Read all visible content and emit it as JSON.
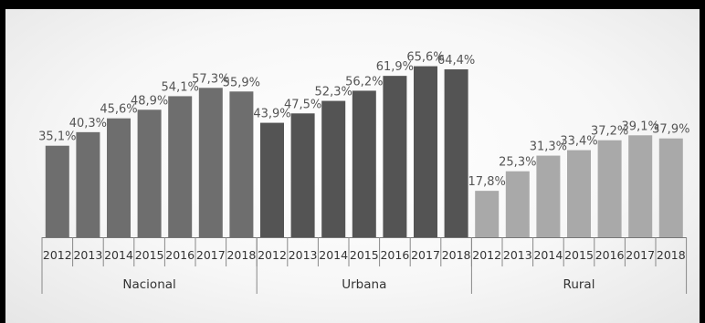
{
  "chart_data": {
    "type": "bar",
    "title": "",
    "xlabel": "",
    "ylabel": "",
    "ylim": [
      0,
      70
    ],
    "grid": false,
    "legend": "none",
    "groups": [
      {
        "name": "Nacional",
        "color": "#6e6e6e",
        "categories": [
          "2012",
          "2013",
          "2014",
          "2015",
          "2016",
          "2017",
          "2018"
        ],
        "values": [
          35.1,
          40.3,
          45.6,
          48.9,
          54.1,
          57.3,
          55.9
        ],
        "labels": [
          "35,1%",
          "40,3%",
          "45,6%",
          "48,9%",
          "54,1%",
          "57,3%",
          "55,9%"
        ]
      },
      {
        "name": "Urbana",
        "color": "#545454",
        "categories": [
          "2012",
          "2013",
          "2014",
          "2015",
          "2016",
          "2017",
          "2018"
        ],
        "values": [
          43.9,
          47.5,
          52.3,
          56.2,
          61.9,
          65.6,
          64.4
        ],
        "labels": [
          "43,9%",
          "47,5%",
          "52,3%",
          "56,2%",
          "61,9%",
          "65,6%",
          "64,4%"
        ]
      },
      {
        "name": "Rural",
        "color": "#a9a9a9",
        "categories": [
          "2012",
          "2013",
          "2014",
          "2015",
          "2016",
          "2017",
          "2018"
        ],
        "values": [
          17.8,
          25.3,
          31.3,
          33.4,
          37.2,
          39.1,
          37.9
        ],
        "labels": [
          "17,8%",
          "25,3%",
          "31,3%",
          "33,4%",
          "37,2%",
          "39,1%",
          "37,9%"
        ]
      }
    ]
  }
}
